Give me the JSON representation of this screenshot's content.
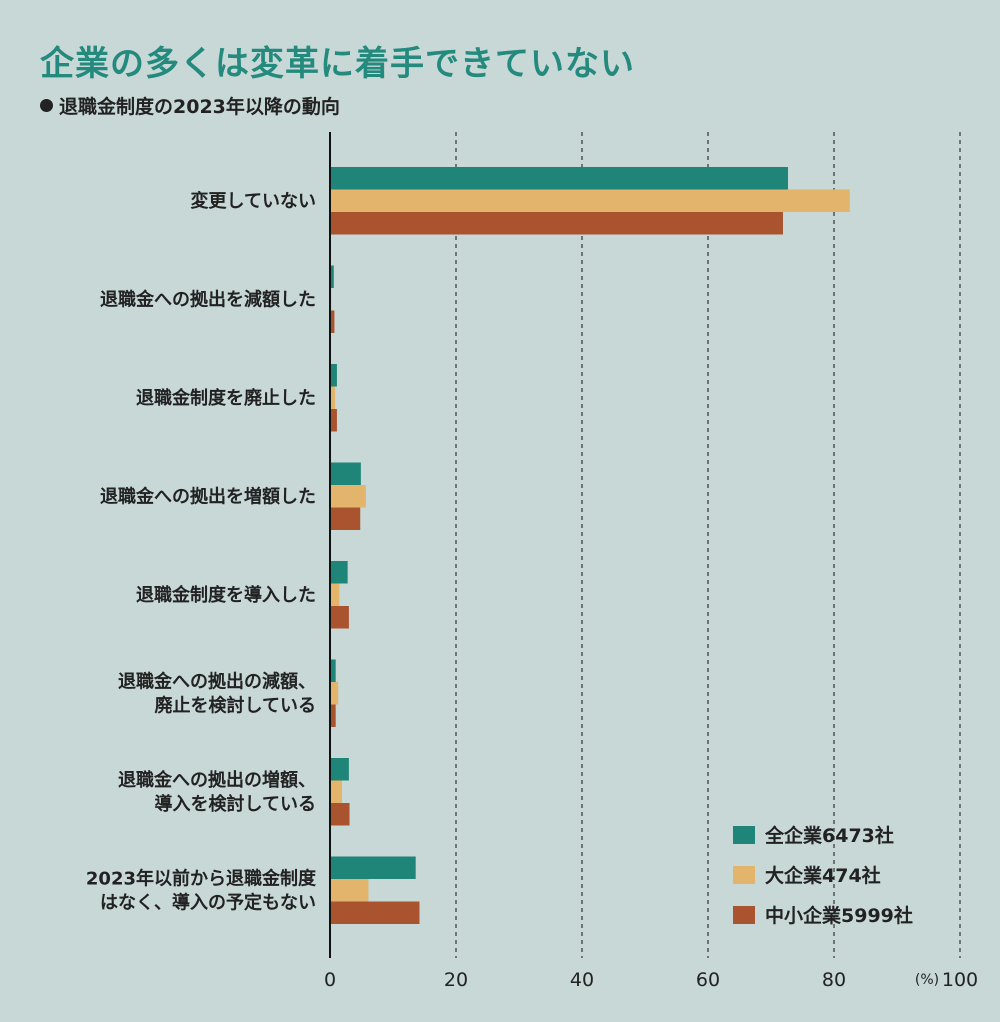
{
  "title": "企業の多くは変革に着手できていない",
  "subtitle": "退職金制度の2023年以降の動向",
  "chart_data": {
    "type": "bar",
    "orientation": "horizontal",
    "categories": [
      [
        "変更していない"
      ],
      [
        "退職金への拠出を減額した"
      ],
      [
        "退職金制度を廃止した"
      ],
      [
        "退職金への拠出を増額した"
      ],
      [
        "退職金制度を導入した"
      ],
      [
        "退職金への拠出の減額、",
        "廃止を検討している"
      ],
      [
        "退職金への拠出の増額、",
        "導入を検討している"
      ],
      [
        "2023年以前から退職金制度",
        "はなく、導入の予定もない"
      ]
    ],
    "series": [
      {
        "name": "全企業6473社",
        "color": "#1f8578",
        "values": [
          72.7,
          0.6,
          1.1,
          4.9,
          2.8,
          0.9,
          3.0,
          13.6
        ]
      },
      {
        "name": "大企業474社",
        "color": "#e3b46c",
        "values": [
          82.5,
          0.2,
          0.8,
          5.7,
          1.5,
          1.3,
          1.9,
          6.1
        ]
      },
      {
        "name": "中小企業5999社",
        "color": "#a9532f",
        "values": [
          71.9,
          0.7,
          1.1,
          4.8,
          3.0,
          0.9,
          3.1,
          14.2
        ]
      }
    ],
    "xlim": [
      0,
      100
    ],
    "xticks": [
      0,
      20,
      40,
      60,
      80,
      100
    ],
    "unit": "(%)",
    "grid": "vertical-dashed",
    "legend_position": "bottom-right"
  }
}
